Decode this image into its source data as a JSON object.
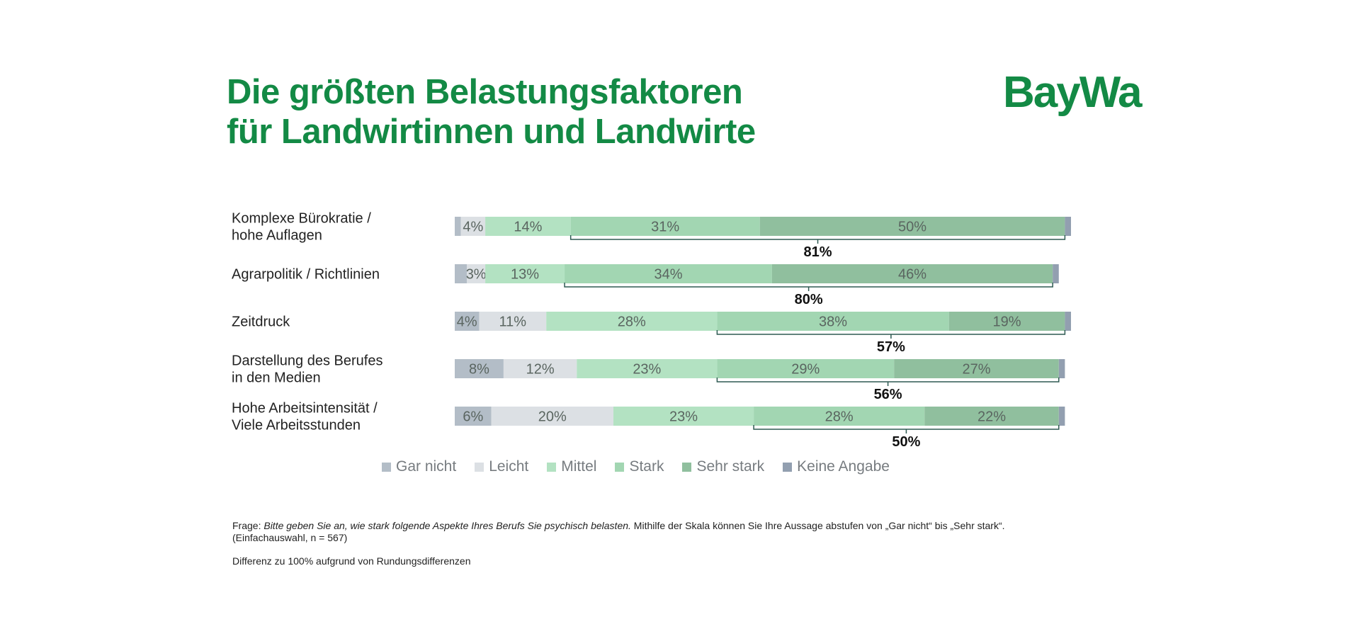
{
  "header": {
    "title_line1": "Die größten Belastungsfaktoren",
    "title_line2": "für Landwirtinnen und Landwirte",
    "logo": "BayWa"
  },
  "colors": {
    "title": "#138a45",
    "gar_nicht": "#b3bdc7",
    "leicht": "#dce0e4",
    "mittel": "#b3e2c2",
    "stark": "#a2d6b2",
    "sehr_stark": "#90bf9e",
    "keine_angabe": "#929fb0",
    "bracket": "#2e5a52"
  },
  "chart_data": {
    "type": "bar",
    "orientation": "horizontal",
    "stacked": true,
    "categories": [
      [
        "Komplexe Bürokratie /",
        "hohe Auflagen"
      ],
      [
        "Agrarpolitik / Richtlinien"
      ],
      [
        "Zeitdruck"
      ],
      [
        "Darstellung des Berufes",
        "in den Medien"
      ],
      [
        "Hohe Arbeitsintensität /",
        "Viele Arbeitsstunden"
      ]
    ],
    "series": [
      {
        "name": "Gar nicht",
        "values": [
          1,
          2,
          4,
          8,
          6
        ],
        "labels": [
          "",
          "",
          "4%",
          "8%",
          "6%"
        ]
      },
      {
        "name": "Leicht",
        "values": [
          4,
          3,
          11,
          12,
          20
        ],
        "labels": [
          "4%",
          "3%",
          "11%",
          "12%",
          "20%"
        ]
      },
      {
        "name": "Mittel",
        "values": [
          14,
          13,
          28,
          23,
          23
        ],
        "labels": [
          "14%",
          "13%",
          "28%",
          "23%",
          "23%"
        ]
      },
      {
        "name": "Stark",
        "values": [
          31,
          34,
          38,
          29,
          28
        ],
        "labels": [
          "31%",
          "34%",
          "38%",
          "29%",
          "28%"
        ]
      },
      {
        "name": "Sehr stark",
        "values": [
          50,
          46,
          19,
          27,
          22
        ],
        "labels": [
          "50%",
          "46%",
          "19%",
          "27%",
          "22%"
        ]
      },
      {
        "name": "Keine Angabe",
        "values": [
          1,
          1,
          1,
          1,
          1
        ],
        "labels": [
          "",
          "",
          "",
          "",
          ""
        ]
      }
    ],
    "totals_stark_plus_sehr_stark": [
      "81%",
      "80%",
      "57%",
      "56%",
      "50%"
    ],
    "xlim": [
      0,
      101
    ]
  },
  "legend": [
    {
      "label": "Gar nicht",
      "color": "#b3bdc7"
    },
    {
      "label": "Leicht",
      "color": "#dce0e4"
    },
    {
      "label": "Mittel",
      "color": "#b3e2c2"
    },
    {
      "label": "Stark",
      "color": "#a2d6b2"
    },
    {
      "label": "Sehr stark",
      "color": "#90bf9e"
    },
    {
      "label": "Keine Angabe",
      "color": "#929fb0"
    }
  ],
  "footnote": {
    "prefix": "Frage: ",
    "question": "Bitte geben Sie an, wie stark folgende Aspekte Ihres Berufs Sie psychisch belasten.",
    "suffix": " Mithilfe der Skala können Sie Ihre Aussage abstufen von „Gar nicht“ bis „Sehr stark“.",
    "line2": "(Einfachauswahl, n = 567)",
    "note": "Differenz zu 100% aufgrund von Rundungsdifferenzen"
  }
}
